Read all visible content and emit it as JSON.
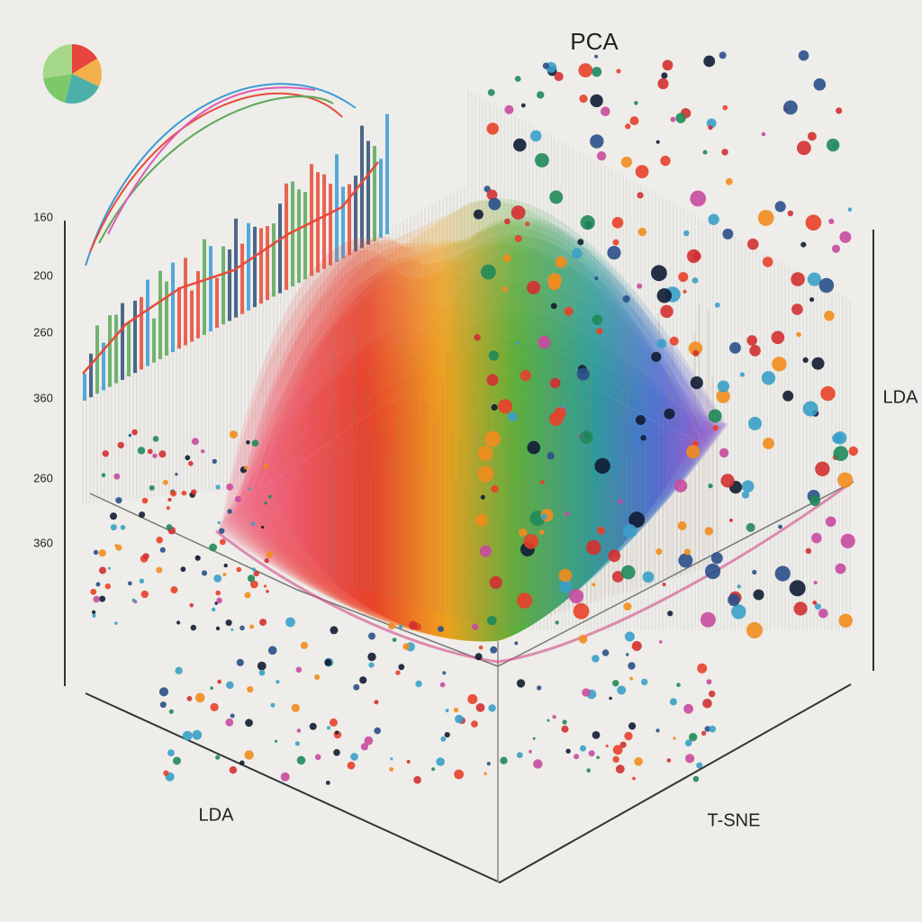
{
  "title": "PCA",
  "axes": {
    "vertical_left": {
      "ticks": [
        "160",
        "200",
        "260",
        "360",
        "260",
        "360"
      ]
    },
    "vertical_right": {
      "label": "LDA"
    },
    "floor_left": {
      "label": "LDA"
    },
    "floor_right": {
      "label": "T-SNE"
    }
  }
}
